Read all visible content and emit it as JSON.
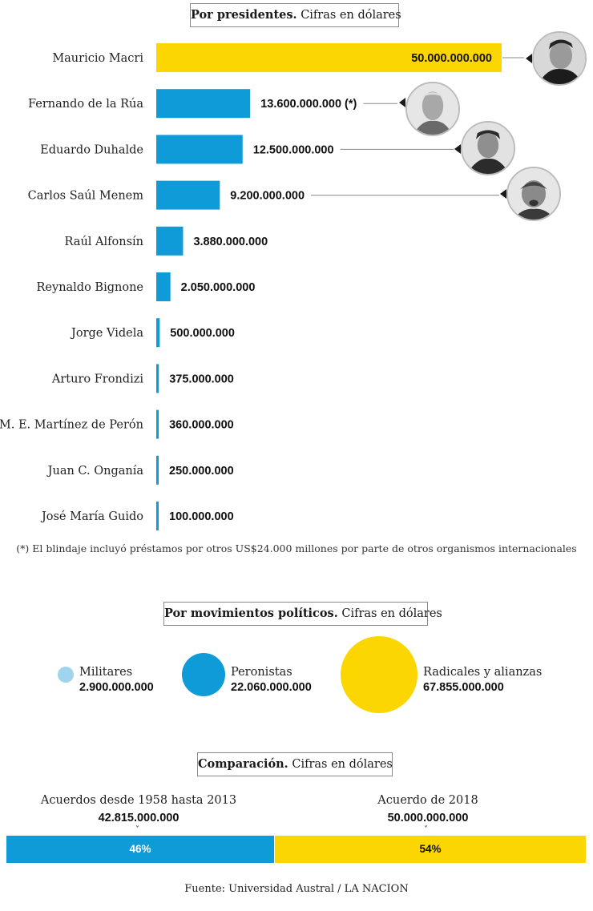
{
  "section1": {
    "title_bold": "Por presidentes.",
    "title_rest": " Cifras en dólares"
  },
  "chart_data": [
    {
      "type": "bar",
      "orientation": "horizontal",
      "categories": [
        "Mauricio Macri",
        "Fernando de la Rúa",
        "Eduardo Duhalde",
        "Carlos Saúl Menem",
        "Raúl Alfonsín",
        "Reynaldo Bignone",
        "Jorge Videla",
        "Arturo Frondizi",
        "M. E. Martínez de Perón",
        "Juan C. Onganía",
        "José María Guido"
      ],
      "values": [
        50000000000,
        13600000000,
        12500000000,
        9200000000,
        3880000000,
        2050000000,
        500000000,
        375000000,
        360000000,
        250000000,
        100000000
      ],
      "value_labels": [
        "50.000.000.000",
        "13.600.000.000 (*)",
        "12.500.000.000",
        "9.200.000.000",
        "3.880.000.000",
        "2.050.000.000",
        "500.000.000",
        "375.000.000",
        "360.000.000",
        "250.000.000",
        "100.000.000"
      ],
      "colors": [
        "#fcd600",
        "#0f9ad8",
        "#0f9ad8",
        "#0f9ad8",
        "#0f9ad8",
        "#0f9ad8",
        "#0f9ad8",
        "#0f9ad8",
        "#0f9ad8",
        "#0f9ad8",
        "#0f9ad8"
      ],
      "title": "Por presidentes. Cifras en dólares",
      "xlim": [
        0,
        50000000000
      ]
    },
    {
      "type": "bubble",
      "title": "Por movimientos políticos. Cifras en dólares",
      "categories": [
        "Militares",
        "Peronistas",
        "Radicales y alianzas"
      ],
      "values": [
        2900000000,
        22060000000,
        67855000000
      ],
      "value_labels": [
        "2.900.000.000",
        "22.060.000.000",
        "67.855.000.000"
      ],
      "colors": [
        "#9fd3ee",
        "#0f9ad8",
        "#fcd600"
      ]
    },
    {
      "type": "bar",
      "orientation": "stacked-horizontal",
      "title": "Comparación. Cifras en dólares",
      "categories": [
        "Acuerdos desde 1958 hasta 2013",
        "Acuerdo de 2018"
      ],
      "values": [
        42815000000,
        50000000000
      ],
      "value_labels": [
        "42.815.000.000",
        "50.000.000.000"
      ],
      "percent": [
        46,
        54
      ],
      "percent_labels": [
        "46%",
        "54%"
      ],
      "colors": [
        "#0f9ad8",
        "#fcd600"
      ]
    }
  ],
  "footnote": "(*) El blindaje incluyó préstamos por otros US$24.000 millones por parte de otros organismos internacionales",
  "section2": {
    "title_bold": "Por movimientos políticos.",
    "title_rest": " Cifras en dólares"
  },
  "section3": {
    "title_bold": "Comparación.",
    "title_rest": " Cifras en dólares"
  },
  "source": "Fuente: Universidad Austral / LA NACION"
}
